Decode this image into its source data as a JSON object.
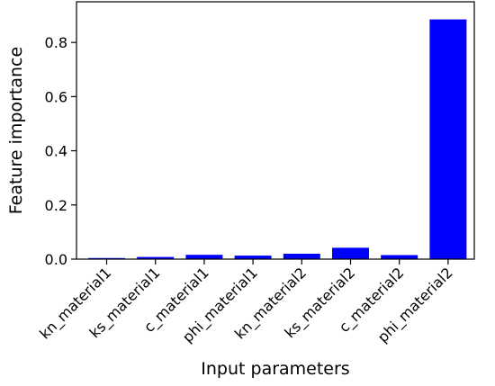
{
  "chart_data": {
    "type": "bar",
    "title": "",
    "xlabel": "Input parameters",
    "ylabel": "Feature importance",
    "categories": [
      "kn_material1",
      "ks_material1",
      "c_material1",
      "phi_material1",
      "kn_material2",
      "ks_material2",
      "c_material2",
      "phi_material2"
    ],
    "values": [
      0.004,
      0.008,
      0.016,
      0.013,
      0.02,
      0.042,
      0.015,
      0.885
    ],
    "yticks": [
      "0.0",
      "0.2",
      "0.4",
      "0.6",
      "0.8"
    ],
    "ylim": [
      0,
      0.95
    ],
    "grid": false,
    "legend": "none",
    "bar_color": "#0000ff"
  }
}
